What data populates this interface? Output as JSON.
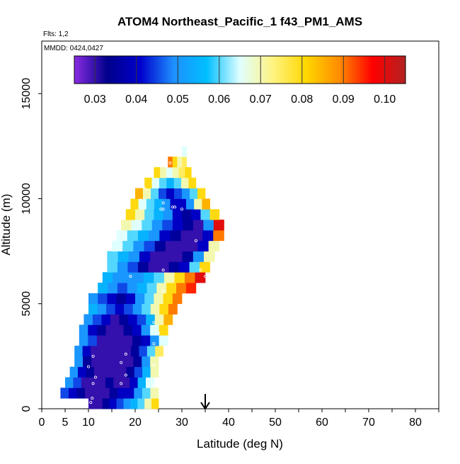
{
  "chart_data": {
    "type": "heatmap",
    "title": "ATOM4 Northeast_Pacific_1 f43_PM1_AMS",
    "subtitle_flights": "Flts: 1,2",
    "subtitle_dates": "MMDD: 0424,0427",
    "xlabel": "Latitude (deg N)",
    "ylabel": "Altitude (m)",
    "xlim": [
      0,
      85
    ],
    "ylim": [
      0,
      17500
    ],
    "x_ticks": [
      "0",
      "5",
      "10",
      "20",
      "30",
      "40",
      "50",
      "60",
      "70",
      "80"
    ],
    "x_tick_values": [
      0,
      5,
      10,
      20,
      30,
      40,
      50,
      60,
      70,
      80
    ],
    "y_ticks": [
      "0",
      "5000",
      "10000",
      "15000"
    ],
    "y_tick_values": [
      0,
      5000,
      10000,
      15000
    ],
    "colorbar": {
      "min": 0.025,
      "max": 0.105,
      "tick_labels": [
        "0.03",
        "0.04",
        "0.05",
        "0.06",
        "0.07",
        "0.08",
        "0.09",
        "0.10"
      ],
      "tick_values": [
        0.03,
        0.04,
        0.05,
        0.06,
        0.07,
        0.08,
        0.09,
        0.1
      ],
      "colors": [
        "#8a2be2",
        "#00008b",
        "#0000cd",
        "#1e90ff",
        "#00bfff",
        "#e0ffff",
        "#fff380",
        "#ffd700",
        "#ff8c00",
        "#ff0000",
        "#b22222"
      ]
    },
    "arrow_latitude": 35,
    "layers": [
      {
        "alt": 0,
        "x0": 10,
        "x1": 25,
        "values": [
          0.03,
          0.03,
          0.035,
          0.04,
          0.045,
          0.05,
          0.055,
          0.06,
          0.07,
          0.08
        ]
      },
      {
        "alt": 500,
        "x0": 4,
        "x1": 25,
        "values": [
          0.045,
          0.04,
          0.035,
          0.03,
          0.03,
          0.03,
          0.035,
          0.04,
          0.04,
          0.05,
          0.06,
          0.07
        ]
      },
      {
        "alt": 1000,
        "x0": 5,
        "x1": 24,
        "values": [
          0.05,
          0.045,
          0.03,
          0.03,
          0.03,
          0.035,
          0.03,
          0.03,
          0.04,
          0.055,
          0.065
        ]
      },
      {
        "alt": 1500,
        "x0": 6,
        "x1": 25,
        "values": [
          0.05,
          0.04,
          0.035,
          0.03,
          0.03,
          0.03,
          0.03,
          0.035,
          0.045,
          0.055,
          0.07
        ]
      },
      {
        "alt": 2000,
        "x0": 7,
        "x1": 25,
        "values": [
          0.05,
          0.035,
          0.03,
          0.03,
          0.03,
          0.03,
          0.03,
          0.035,
          0.05,
          0.07
        ]
      },
      {
        "alt": 2500,
        "x0": 7,
        "x1": 26,
        "values": [
          0.05,
          0.04,
          0.03,
          0.03,
          0.03,
          0.03,
          0.03,
          0.035,
          0.045,
          0.06,
          0.075
        ]
      },
      {
        "alt": 3000,
        "x0": 8,
        "x1": 27,
        "values": [
          0.05,
          0.045,
          0.03,
          0.03,
          0.03,
          0.03,
          0.035,
          0.04,
          0.05,
          0.065
        ]
      },
      {
        "alt": 3500,
        "x0": 8,
        "x1": 27,
        "values": [
          0.05,
          0.04,
          0.035,
          0.03,
          0.03,
          0.035,
          0.04,
          0.05,
          0.065,
          0.08
        ]
      },
      {
        "alt": 4000,
        "x0": 9,
        "x1": 28,
        "values": [
          0.05,
          0.045,
          0.04,
          0.03,
          0.035,
          0.04,
          0.045,
          0.055,
          0.07,
          0.085
        ]
      },
      {
        "alt": 4500,
        "x0": 10,
        "x1": 29,
        "values": [
          0.055,
          0.05,
          0.045,
          0.04,
          0.045,
          0.05,
          0.06,
          0.07,
          0.08,
          0.09
        ]
      },
      {
        "alt": 5000,
        "x0": 10,
        "x1": 30,
        "values": [
          0.05,
          0.045,
          0.04,
          0.035,
          0.04,
          0.05,
          0.06,
          0.07,
          0.08,
          0.09
        ]
      },
      {
        "alt": 5500,
        "x0": 12,
        "x1": 33,
        "values": [
          0.055,
          0.05,
          0.045,
          0.05,
          0.055,
          0.06,
          0.07,
          0.08,
          0.09,
          0.095
        ]
      },
      {
        "alt": 6000,
        "x0": 13,
        "x1": 35,
        "values": [
          0.055,
          0.05,
          0.05,
          0.05,
          0.055,
          0.06,
          0.07,
          0.08,
          0.09,
          0.1
        ]
      },
      {
        "alt": 6500,
        "x0": 14,
        "x1": 36,
        "values": [
          0.06,
          0.05,
          0.045,
          0.035,
          0.03,
          0.03,
          0.035,
          0.04,
          0.06,
          0.08
        ]
      },
      {
        "alt": 7000,
        "x0": 14,
        "x1": 37,
        "values": [
          0.06,
          0.055,
          0.05,
          0.04,
          0.03,
          0.03,
          0.03,
          0.035,
          0.05,
          0.07
        ]
      },
      {
        "alt": 7500,
        "x0": 15,
        "x1": 38,
        "values": [
          0.065,
          0.06,
          0.05,
          0.045,
          0.035,
          0.03,
          0.03,
          0.03,
          0.04,
          0.07
        ]
      },
      {
        "alt": 8000,
        "x0": 16,
        "x1": 39,
        "values": [
          0.065,
          0.06,
          0.055,
          0.05,
          0.04,
          0.035,
          0.03,
          0.03,
          0.04,
          0.09
        ]
      },
      {
        "alt": 8500,
        "x0": 17,
        "x1": 39,
        "values": [
          0.07,
          0.065,
          0.06,
          0.05,
          0.045,
          0.04,
          0.035,
          0.03,
          0.05,
          0.1
        ]
      },
      {
        "alt": 9000,
        "x0": 18,
        "x1": 38,
        "values": [
          0.08,
          0.07,
          0.06,
          0.055,
          0.05,
          0.04,
          0.035,
          0.04,
          0.06,
          0.08
        ]
      },
      {
        "alt": 9500,
        "x0": 19,
        "x1": 36,
        "values": [
          0.08,
          0.065,
          0.06,
          0.055,
          0.05,
          0.04,
          0.04,
          0.05,
          0.07,
          0.085
        ]
      },
      {
        "alt": 10000,
        "x0": 20,
        "x1": 35,
        "values": [
          0.085,
          0.07,
          0.06,
          0.045,
          0.04,
          0.045,
          0.05,
          0.06,
          0.08
        ]
      },
      {
        "alt": 10500,
        "x0": 22,
        "x1": 33,
        "values": [
          0.08,
          0.065,
          0.06,
          0.055,
          0.06,
          0.07,
          0.08
        ]
      },
      {
        "alt": 11000,
        "x0": 24,
        "x1": 32,
        "values": [
          0.08,
          0.07,
          0.065,
          0.07,
          0.075,
          0.08
        ]
      },
      {
        "alt": 11500,
        "x0": 27,
        "x1": 31,
        "values": [
          0.09,
          0.08,
          0.07,
          0.075
        ]
      },
      {
        "alt": 12000,
        "x0": 30,
        "x1": 31,
        "values": [
          0.065
        ]
      }
    ],
    "sample_points": [
      {
        "lat": 10.5,
        "alt": 300
      },
      {
        "lat": 10.8,
        "alt": 500
      },
      {
        "lat": 11,
        "alt": 1200
      },
      {
        "lat": 11.5,
        "alt": 1500
      },
      {
        "lat": 10,
        "alt": 2000
      },
      {
        "lat": 11,
        "alt": 2500
      },
      {
        "lat": 17,
        "alt": 1200
      },
      {
        "lat": 18,
        "alt": 1600
      },
      {
        "lat": 17,
        "alt": 2200
      },
      {
        "lat": 18,
        "alt": 2600
      },
      {
        "lat": 24,
        "alt": 1100
      },
      {
        "lat": 24,
        "alt": 2100
      },
      {
        "lat": 24,
        "alt": 3100
      },
      {
        "lat": 24,
        "alt": 4100
      },
      {
        "lat": 25,
        "alt": 3600
      },
      {
        "lat": 26,
        "alt": 5600
      },
      {
        "lat": 19,
        "alt": 6300
      },
      {
        "lat": 26,
        "alt": 6600
      },
      {
        "lat": 34,
        "alt": 6600
      },
      {
        "lat": 35,
        "alt": 6300
      },
      {
        "lat": 33,
        "alt": 8000
      },
      {
        "lat": 25.5,
        "alt": 9500
      },
      {
        "lat": 26,
        "alt": 9500
      },
      {
        "lat": 28,
        "alt": 9600
      },
      {
        "lat": 28.5,
        "alt": 9600
      },
      {
        "lat": 30,
        "alt": 9500
      },
      {
        "lat": 26,
        "alt": 9800
      },
      {
        "lat": 22,
        "alt": 10500
      },
      {
        "lat": 27.5,
        "alt": 11700
      }
    ]
  }
}
